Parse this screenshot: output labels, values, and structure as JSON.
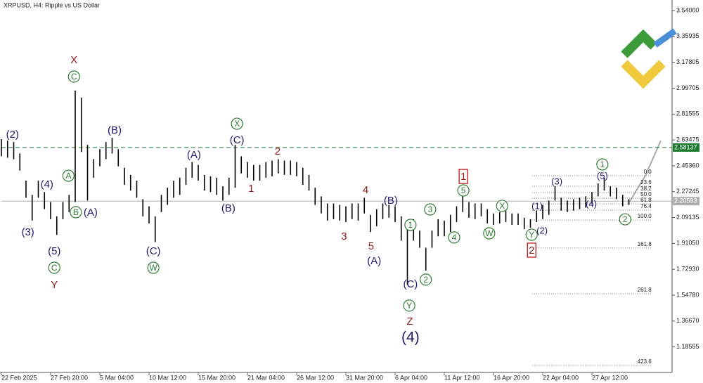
{
  "chart_data": {
    "type": "ohlc",
    "title": "XRPUSD, H4:  Ripple vs US Dollar",
    "color": "#000000",
    "x": [
      0,
      1,
      2,
      3,
      4,
      5,
      6,
      7,
      8,
      9,
      10,
      11,
      12,
      13,
      14,
      15,
      16,
      17,
      18,
      19,
      20,
      21,
      22,
      23,
      24,
      25,
      26,
      27,
      28,
      29,
      30,
      31,
      32,
      33,
      34,
      35,
      36,
      37,
      38,
      39,
      40,
      41,
      42,
      43,
      44,
      45,
      46,
      47,
      48,
      49,
      50,
      51,
      52,
      53,
      54,
      55,
      56,
      57,
      58,
      59,
      60,
      61,
      62,
      63,
      64,
      65,
      66,
      67,
      68,
      69,
      70,
      71,
      72,
      73,
      74,
      75,
      76,
      77,
      78,
      79,
      80,
      81,
      82,
      83,
      84,
      85,
      86,
      87,
      88,
      89,
      90,
      91,
      92,
      93,
      94,
      95,
      96,
      97,
      98,
      99,
      100,
      101,
      102
    ],
    "highs": [
      2.64,
      2.63,
      2.62,
      2.54,
      2.35,
      2.25,
      2.35,
      2.27,
      2.2,
      2.1,
      2.2,
      2.25,
      2.98,
      2.93,
      2.6,
      2.5,
      2.57,
      2.62,
      2.65,
      2.57,
      2.44,
      2.39,
      2.35,
      2.22,
      2.17,
      2.1,
      2.25,
      2.3,
      2.35,
      2.37,
      2.44,
      2.48,
      2.46,
      2.39,
      2.38,
      2.37,
      2.31,
      2.37,
      2.6,
      2.52,
      2.48,
      2.46,
      2.46,
      2.48,
      2.49,
      2.5,
      2.49,
      2.49,
      2.48,
      2.44,
      2.39,
      2.3,
      2.24,
      2.19,
      2.19,
      2.18,
      2.17,
      2.19,
      2.19,
      2.23,
      2.11,
      2.15,
      2.19,
      2.18,
      2.17,
      2.1,
      2.05,
      2.08,
      2.0,
      1.88,
      2.0,
      2.08,
      2.07,
      2.11,
      2.17,
      2.24,
      2.2,
      2.19,
      2.19,
      2.15,
      2.12,
      2.13,
      2.14,
      2.12,
      2.12,
      2.09,
      2.08,
      2.14,
      2.18,
      2.21,
      2.31,
      2.23,
      2.21,
      2.22,
      2.23,
      2.24,
      2.27,
      2.33,
      2.37,
      2.31,
      2.3,
      2.25,
      2.22
    ],
    "lows": [
      2.52,
      2.51,
      2.5,
      2.42,
      2.23,
      2.07,
      2.23,
      2.15,
      2.08,
      1.97,
      2.08,
      2.13,
      2.2,
      2.55,
      2.21,
      2.37,
      2.45,
      2.5,
      2.54,
      2.45,
      2.32,
      2.28,
      2.23,
      2.1,
      2.05,
      1.92,
      2.13,
      2.18,
      2.23,
      2.25,
      2.32,
      2.37,
      2.35,
      2.28,
      2.27,
      2.25,
      2.21,
      2.25,
      2.3,
      2.4,
      2.37,
      2.35,
      2.35,
      2.37,
      2.38,
      2.4,
      2.39,
      2.39,
      2.38,
      2.32,
      2.28,
      2.18,
      2.12,
      2.07,
      2.08,
      2.07,
      2.06,
      2.08,
      2.07,
      2.12,
      1.99,
      2.03,
      2.08,
      2.09,
      2.06,
      1.93,
      1.62,
      1.93,
      1.88,
      1.72,
      1.88,
      1.96,
      1.96,
      1.99,
      2.06,
      2.13,
      2.09,
      2.08,
      2.1,
      2.05,
      2.04,
      2.05,
      2.06,
      2.04,
      2.04,
      2.01,
      2.02,
      2.06,
      2.08,
      2.11,
      2.21,
      2.14,
      2.13,
      2.14,
      2.15,
      2.16,
      2.19,
      2.24,
      2.28,
      2.24,
      2.22,
      2.17,
      2.18
    ],
    "xlim": [
      0,
      109
    ],
    "ylim": [
      1.007,
      3.614
    ],
    "xticks": [
      {
        "value": 0,
        "label": "22 Feb 2025"
      },
      {
        "value": 8,
        "label": "27 Feb 20:00"
      },
      {
        "value": 16,
        "label": "5 Mar 04:00"
      },
      {
        "value": 24,
        "label": "10 Mar 12:00"
      },
      {
        "value": 32,
        "label": "15 Mar 20:00"
      },
      {
        "value": 40,
        "label": "21 Mar 04:00"
      },
      {
        "value": 48,
        "label": "26 Mar 12:00"
      },
      {
        "value": 56,
        "label": "31 Mar 20:00"
      },
      {
        "value": 64,
        "label": "6 Apr 04:00"
      },
      {
        "value": 72,
        "label": "11 Apr 12:00"
      },
      {
        "value": 80,
        "label": "16 Apr 20:00"
      },
      {
        "value": 88,
        "label": "22 Apr 04:00"
      },
      {
        "value": 96,
        "label": "27 Apr 12:00"
      }
    ],
    "yticks": [
      {
        "value": 3.54,
        "label": "3.54000"
      },
      {
        "value": 3.35935,
        "label": "3.35935"
      },
      {
        "value": 3.17805,
        "label": "3.17805"
      },
      {
        "value": 2.99705,
        "label": "2.99705"
      },
      {
        "value": 2.81555,
        "label": "2.81555"
      },
      {
        "value": 2.63475,
        "label": "2.63475"
      },
      {
        "value": 2.4536,
        "label": "2.45360"
      },
      {
        "value": 2.27245,
        "label": "2.27245"
      },
      {
        "value": 2.09135,
        "label": "2.09135"
      },
      {
        "value": 1.9105,
        "label": "1.91050"
      },
      {
        "value": 1.7293,
        "label": "1.72930"
      },
      {
        "value": 1.5478,
        "label": "1.54780"
      },
      {
        "value": 1.3667,
        "label": "1.36670"
      },
      {
        "value": 1.18555,
        "label": "1.18555"
      }
    ],
    "hlines": [
      {
        "value": 2.58137,
        "color": "#1b7a2e",
        "style": "dashed"
      },
      {
        "value": 2.20593,
        "color": "#b0b0b0",
        "style": "solid"
      }
    ],
    "fibonacci": {
      "x": [
        86.3,
        105.8
      ],
      "levels": [
        {
          "value": 2.384,
          "label": "0.0"
        },
        {
          "value": 2.3105,
          "label": "23.6"
        },
        {
          "value": 2.266,
          "label": "38.2"
        },
        {
          "value": 2.227,
          "label": "50.0"
        },
        {
          "value": 2.187,
          "label": "61.8"
        },
        {
          "value": 2.143,
          "label": "76.4"
        },
        {
          "value": 2.074,
          "label": "100.0"
        },
        {
          "value": 1.878,
          "label": "161.8"
        },
        {
          "value": 1.558,
          "label": "261.8"
        },
        {
          "value": 1.056,
          "label": "423.6"
        }
      ]
    },
    "annotations": [
      {
        "text": "(2)",
        "x": 1.8,
        "y": 2.675,
        "color": "#1f1a6b",
        "style": "plain"
      },
      {
        "text": "(4)",
        "x": 7.4,
        "y": 2.325,
        "color": "#1f1a6b",
        "style": "plain"
      },
      {
        "text": "(3)",
        "x": 4.3,
        "y": 1.991,
        "color": "#1f1a6b",
        "style": "plain"
      },
      {
        "text": "(5)",
        "x": 8.6,
        "y": 1.858,
        "color": "#1f1a6b",
        "style": "plain"
      },
      {
        "text": "C",
        "x": 8.6,
        "y": 1.74,
        "color": "#2e7d32",
        "style": "circle"
      },
      {
        "text": "Y",
        "x": 8.6,
        "y": 1.622,
        "color": "#8b1a1a",
        "style": "plain"
      },
      {
        "text": "X",
        "x": 11.8,
        "y": 3.196,
        "color": "#8b1a1a",
        "style": "plain"
      },
      {
        "text": "C",
        "x": 11.8,
        "y": 3.078,
        "color": "#2e7d32",
        "style": "circle"
      },
      {
        "text": "A",
        "x": 10.9,
        "y": 2.384,
        "color": "#2e7d32",
        "style": "circle"
      },
      {
        "text": "B",
        "x": 12.1,
        "y": 2.129,
        "color": "#2e7d32",
        "style": "circle"
      },
      {
        "text": "(A)",
        "x": 14.5,
        "y": 2.129,
        "color": "#1f1a6b",
        "style": "plain"
      },
      {
        "text": "(B)",
        "x": 18.4,
        "y": 2.704,
        "color": "#1f1a6b",
        "style": "plain"
      },
      {
        "text": "(C)",
        "x": 24.7,
        "y": 1.858,
        "color": "#1f1a6b",
        "style": "plain"
      },
      {
        "text": "W",
        "x": 24.7,
        "y": 1.74,
        "color": "#2e7d32",
        "style": "circle"
      },
      {
        "text": "(A)",
        "x": 31.3,
        "y": 2.532,
        "color": "#1f1a6b",
        "style": "plain"
      },
      {
        "text": "(B)",
        "x": 36.9,
        "y": 2.158,
        "color": "#1f1a6b",
        "style": "plain"
      },
      {
        "text": "X",
        "x": 38.3,
        "y": 2.748,
        "color": "#2e7d32",
        "style": "circle"
      },
      {
        "text": "(C)",
        "x": 38.3,
        "y": 2.635,
        "color": "#1f1a6b",
        "style": "plain"
      },
      {
        "text": "2",
        "x": 44.9,
        "y": 2.556,
        "color": "#8b1a1a",
        "style": "plain"
      },
      {
        "text": "1",
        "x": 40.6,
        "y": 2.296,
        "color": "#8b1a1a",
        "style": "plain"
      },
      {
        "text": "3",
        "x": 55.7,
        "y": 1.961,
        "color": "#8b1a1a",
        "style": "plain"
      },
      {
        "text": "4",
        "x": 59.2,
        "y": 2.286,
        "color": "#8b1a1a",
        "style": "plain"
      },
      {
        "text": "5",
        "x": 60.1,
        "y": 1.892,
        "color": "#8b1a1a",
        "style": "plain"
      },
      {
        "text": "(A)",
        "x": 60.6,
        "y": 1.789,
        "color": "#1f1a6b",
        "style": "plain"
      },
      {
        "text": "(B)",
        "x": 63.3,
        "y": 2.212,
        "color": "#1f1a6b",
        "style": "plain"
      },
      {
        "text": "(C)",
        "x": 66.5,
        "y": 1.627,
        "color": "#1f1a6b",
        "style": "plain"
      },
      {
        "text": "Y",
        "x": 66.3,
        "y": 1.475,
        "color": "#2e7d32",
        "style": "circle"
      },
      {
        "text": "Z",
        "x": 66.4,
        "y": 1.366,
        "color": "#8b1a1a",
        "style": "plain"
      },
      {
        "text": "(4)",
        "x": 66.5,
        "y": 1.253,
        "color": "#1f1a6b",
        "style": "large"
      },
      {
        "text": "1",
        "x": 66.5,
        "y": 2.04,
        "color": "#2e7d32",
        "style": "circle"
      },
      {
        "text": "2",
        "x": 69.0,
        "y": 1.657,
        "color": "#2e7d32",
        "style": "circle"
      },
      {
        "text": "3",
        "x": 69.7,
        "y": 2.148,
        "color": "#2e7d32",
        "style": "circle"
      },
      {
        "text": "4",
        "x": 73.6,
        "y": 1.952,
        "color": "#2e7d32",
        "style": "circle"
      },
      {
        "text": "5",
        "x": 75.1,
        "y": 2.281,
        "color": "#2e7d32",
        "style": "circle"
      },
      {
        "text": "1",
        "x": 75.1,
        "y": 2.379,
        "color": "#8b1a1a",
        "style": "box"
      },
      {
        "text": "W",
        "x": 79.3,
        "y": 1.981,
        "color": "#2e7d32",
        "style": "circle"
      },
      {
        "text": "X",
        "x": 81.4,
        "y": 2.173,
        "color": "#2e7d32",
        "style": "circle"
      },
      {
        "text": "Y",
        "x": 86.2,
        "y": 1.971,
        "color": "#2e7d32",
        "style": "circle"
      },
      {
        "text": "2",
        "x": 86.2,
        "y": 1.863,
        "color": "#8b1a1a",
        "style": "box"
      },
      {
        "text": "(2)",
        "x": 87.9,
        "y": 2.001,
        "color": "#1f1a6b",
        "style": "small"
      },
      {
        "text": "(1)",
        "x": 87.1,
        "y": 2.173,
        "color": "#1f1a6b",
        "style": "small"
      },
      {
        "text": "(3)",
        "x": 90.3,
        "y": 2.345,
        "color": "#1f1a6b",
        "style": "small"
      },
      {
        "text": "(4)",
        "x": 95.9,
        "y": 2.187,
        "color": "#1f1a6b",
        "style": "small"
      },
      {
        "text": "(5)",
        "x": 97.7,
        "y": 2.384,
        "color": "#1f1a6b",
        "style": "small"
      },
      {
        "text": "1",
        "x": 97.7,
        "y": 2.463,
        "color": "#2e7d32",
        "style": "circle"
      },
      {
        "text": "2",
        "x": 101.4,
        "y": 2.079,
        "color": "#2e7d32",
        "style": "circle"
      }
    ]
  }
}
